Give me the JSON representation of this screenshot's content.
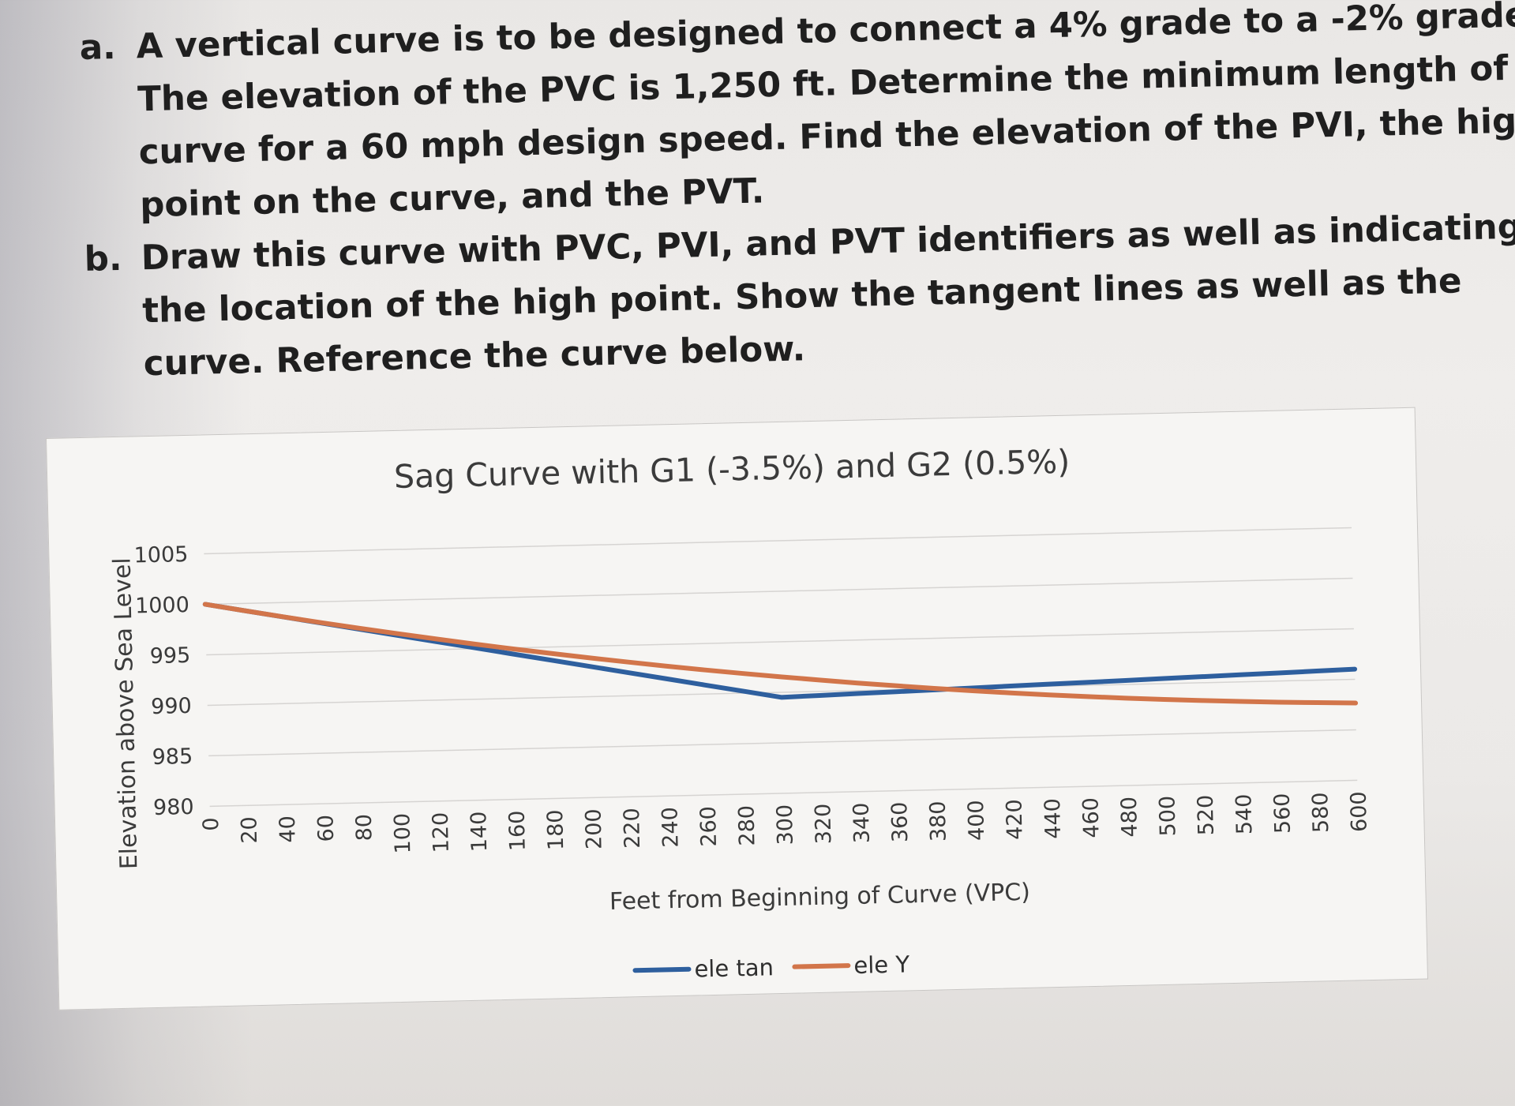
{
  "problem": {
    "part_a": {
      "letter": "a.",
      "lines": [
        "A vertical curve is to be designed to connect a 4% grade to a -2% grade.",
        "The elevation of the PVC is 1,250 ft.  Determine the minimum length of",
        "curve for a 60 mph design speed.  Find the elevation of the PVI, the high",
        "point on the curve, and the PVT."
      ]
    },
    "part_b": {
      "letter": "b.",
      "lines": [
        "Draw this curve with PVC, PVI, and PVT identifiers as well as indicating",
        "the location of the high point.  Show the tangent lines as well as the",
        "curve. Reference the curve below."
      ]
    }
  },
  "chart_data": {
    "type": "line",
    "title": "Sag Curve with G1 (-3.5%) and G2 (0.5%)",
    "xlabel": "Feet from Beginning of Curve (VPC)",
    "ylabel": "Elevation above Sea Level",
    "ylim": [
      980,
      1005
    ],
    "yticks": [
      980,
      985,
      990,
      995,
      1000,
      1005
    ],
    "categories": [
      0,
      20,
      40,
      60,
      80,
      100,
      120,
      140,
      160,
      180,
      200,
      220,
      240,
      260,
      280,
      300,
      320,
      340,
      360,
      380,
      400,
      420,
      440,
      460,
      480,
      500,
      520,
      540,
      560,
      580,
      600
    ],
    "grid": true,
    "legend_position": "bottom",
    "series": [
      {
        "name": "ele tan",
        "color": "#2e5f9e",
        "values": [
          1000,
          999.3,
          998.6,
          997.9,
          997.2,
          996.5,
          995.8,
          995.1,
          994.4,
          993.7,
          993,
          992.3,
          991.6,
          990.9,
          990.2,
          989.5,
          989.6,
          989.7,
          989.8,
          989.9,
          990,
          990.1,
          990.2,
          990.3,
          990.4,
          990.5,
          990.6,
          990.7,
          990.8,
          990.9,
          991
        ]
      },
      {
        "name": "ele Y",
        "color": "#d2754a",
        "values": [
          1000,
          999.3,
          998.61,
          997.94,
          997.29,
          996.67,
          996.06,
          995.47,
          994.91,
          994.37,
          993.84,
          993.34,
          992.85,
          992.39,
          991.95,
          991.53,
          991.13,
          990.74,
          990.39,
          990.05,
          989.72,
          989.42,
          989.14,
          988.89,
          988.65,
          988.43,
          988.24,
          988.06,
          987.9,
          987.77,
          987.65
        ]
      }
    ]
  }
}
